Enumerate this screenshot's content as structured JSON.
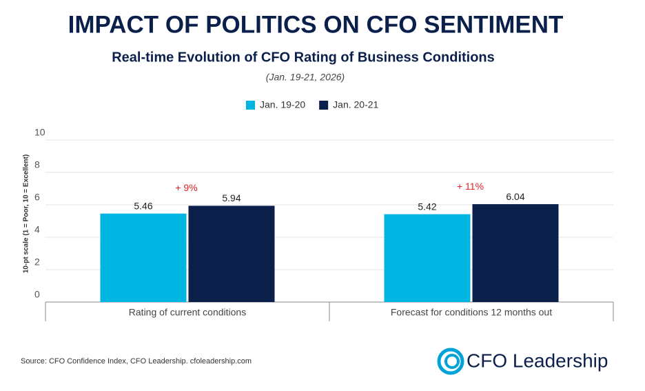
{
  "chart_data": {
    "type": "bar",
    "title": "IMPACT OF POLITICS ON CFO SENTIMENT",
    "subtitle": "Real-time Evolution of CFO Rating of Business Conditions",
    "date_note": "(Jan. 19-21, 2026)",
    "y_label": "10-pt scale (1 = Poor, 10 = Excellent)",
    "categories": [
      "Rating of current conditions",
      "Forecast for conditions 12 months out"
    ],
    "series": [
      {
        "name": "Jan. 19-20",
        "color": "#00b5e2",
        "values": [
          5.46,
          5.42
        ]
      },
      {
        "name": "Jan. 20-21",
        "color": "#0b1f4b",
        "values": [
          5.94,
          6.04
        ]
      }
    ],
    "annotations": [
      "+ 9%",
      "+ 11%"
    ],
    "ylim": [
      0,
      10
    ],
    "yticks": [
      0,
      2,
      4,
      6,
      8,
      10
    ],
    "grid": true,
    "legend": "top",
    "source": "Source: CFO Confidence Index, CFO Leadership. cfoleadership.com",
    "logo": "CFO Leadership"
  }
}
